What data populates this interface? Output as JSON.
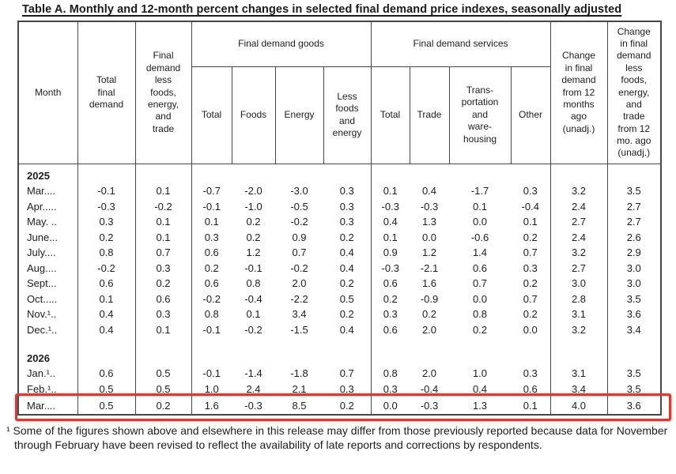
{
  "title": "Table A. Monthly and 12-month percent changes in selected final demand price indexes, seasonally adjusted",
  "highlight_color": "#c0443d",
  "table": {
    "headers": {
      "month": "Month",
      "total_final_demand": "Total\nfinal\ndemand",
      "less_fet": "Final\ndemand\nless\nfoods,\nenergy,\nand\ntrade",
      "goods_group": "Final demand goods",
      "goods_total": "Total",
      "goods_foods": "Foods",
      "goods_energy": "Energy",
      "goods_less_fe": "Less\nfoods\nand\nenergy",
      "services_group": "Final demand services",
      "services_total": "Total",
      "services_trade": "Trade",
      "services_transport": "Trans-\nportation\nand\nware-\nhousing",
      "services_other": "Other",
      "change_12mo": "Change\nin final\ndemand\nfrom 12\nmonths\nago\n(unadj.)",
      "change_12mo_less_fet": "Change\nin final\ndemand\nless\nfoods,\nenergy,\nand\ntrade\nfrom 12\nmo. ago\n(unadj.)"
    },
    "sections": [
      {
        "year": "2025",
        "rows": [
          {
            "month": "Mar....",
            "values": [
              "-0.1",
              "0.1",
              "-0.7",
              "-2.0",
              "-3.0",
              "0.3",
              "0.1",
              "0.4",
              "-1.7",
              "0.3",
              "3.2",
              "3.5"
            ]
          },
          {
            "month": "Apr.....",
            "values": [
              "-0.3",
              "-0.2",
              "-0.1",
              "-1.0",
              "-0.5",
              "0.3",
              "-0.3",
              "-0.3",
              "0.1",
              "-0.4",
              "2.4",
              "2.7"
            ]
          },
          {
            "month": "May. ..",
            "values": [
              "0.3",
              "0.1",
              "0.1",
              "0.2",
              "-0.2",
              "0.3",
              "0.4",
              "1.3",
              "0.0",
              "0.1",
              "2.7",
              "2.7"
            ]
          },
          {
            "month": "June...",
            "values": [
              "0.2",
              "0.1",
              "0.3",
              "0.2",
              "0.9",
              "0.2",
              "0.1",
              "0.0",
              "-0.6",
              "0.2",
              "2.4",
              "2.6"
            ]
          },
          {
            "month": "July....",
            "values": [
              "0.8",
              "0.7",
              "0.6",
              "1.2",
              "0.7",
              "0.4",
              "0.9",
              "1.2",
              "1.4",
              "0.7",
              "3.2",
              "2.9"
            ]
          },
          {
            "month": "Aug....",
            "values": [
              "-0.2",
              "0.3",
              "0.2",
              "-0.1",
              "-0.2",
              "0.4",
              "-0.3",
              "-2.1",
              "0.6",
              "0.3",
              "2.7",
              "3.0"
            ]
          },
          {
            "month": "Sept...",
            "values": [
              "0.6",
              "0.2",
              "0.6",
              "0.8",
              "2.0",
              "0.2",
              "0.6",
              "1.6",
              "0.7",
              "0.2",
              "3.0",
              "3.0"
            ]
          },
          {
            "month": "Oct.....",
            "values": [
              "0.1",
              "0.6",
              "-0.2",
              "-0.4",
              "-2.2",
              "0.5",
              "0.2",
              "-0.9",
              "0.0",
              "0.7",
              "2.8",
              "3.5"
            ]
          },
          {
            "month": "Nov.¹..",
            "values": [
              "0.4",
              "0.3",
              "0.8",
              "0.1",
              "3.4",
              "0.2",
              "0.3",
              "0.2",
              "0.8",
              "0.2",
              "3.1",
              "3.6"
            ]
          },
          {
            "month": "Dec.¹..",
            "values": [
              "0.4",
              "0.1",
              "-0.1",
              "-0.2",
              "-1.5",
              "0.4",
              "0.6",
              "2.0",
              "0.2",
              "0.0",
              "3.2",
              "3.4"
            ]
          }
        ]
      },
      {
        "year": "2026",
        "rows": [
          {
            "month": "Jan.¹..",
            "values": [
              "0.6",
              "0.5",
              "-0.1",
              "-1.4",
              "-1.8",
              "0.7",
              "0.8",
              "2.0",
              "1.0",
              "0.3",
              "3.1",
              "3.5"
            ]
          },
          {
            "month": "Feb.¹..",
            "values": [
              "0.5",
              "0.5",
              "1.0",
              "2.4",
              "2.1",
              "0.3",
              "0.3",
              "-0.4",
              "0.4",
              "0.6",
              "3.4",
              "3.5"
            ]
          },
          {
            "month": "Mar....",
            "highlighted": true,
            "values": [
              "0.5",
              "0.2",
              "1.6",
              "-0.3",
              "8.5",
              "0.2",
              "0.0",
              "-0.3",
              "1.3",
              "0.1",
              "4.0",
              "3.6"
            ]
          }
        ]
      }
    ]
  },
  "footnote": "¹ Some of the figures shown above and elsewhere in this release may differ from those previously reported because data for November through February have been revised to reflect the availability of late reports and corrections by respondents."
}
